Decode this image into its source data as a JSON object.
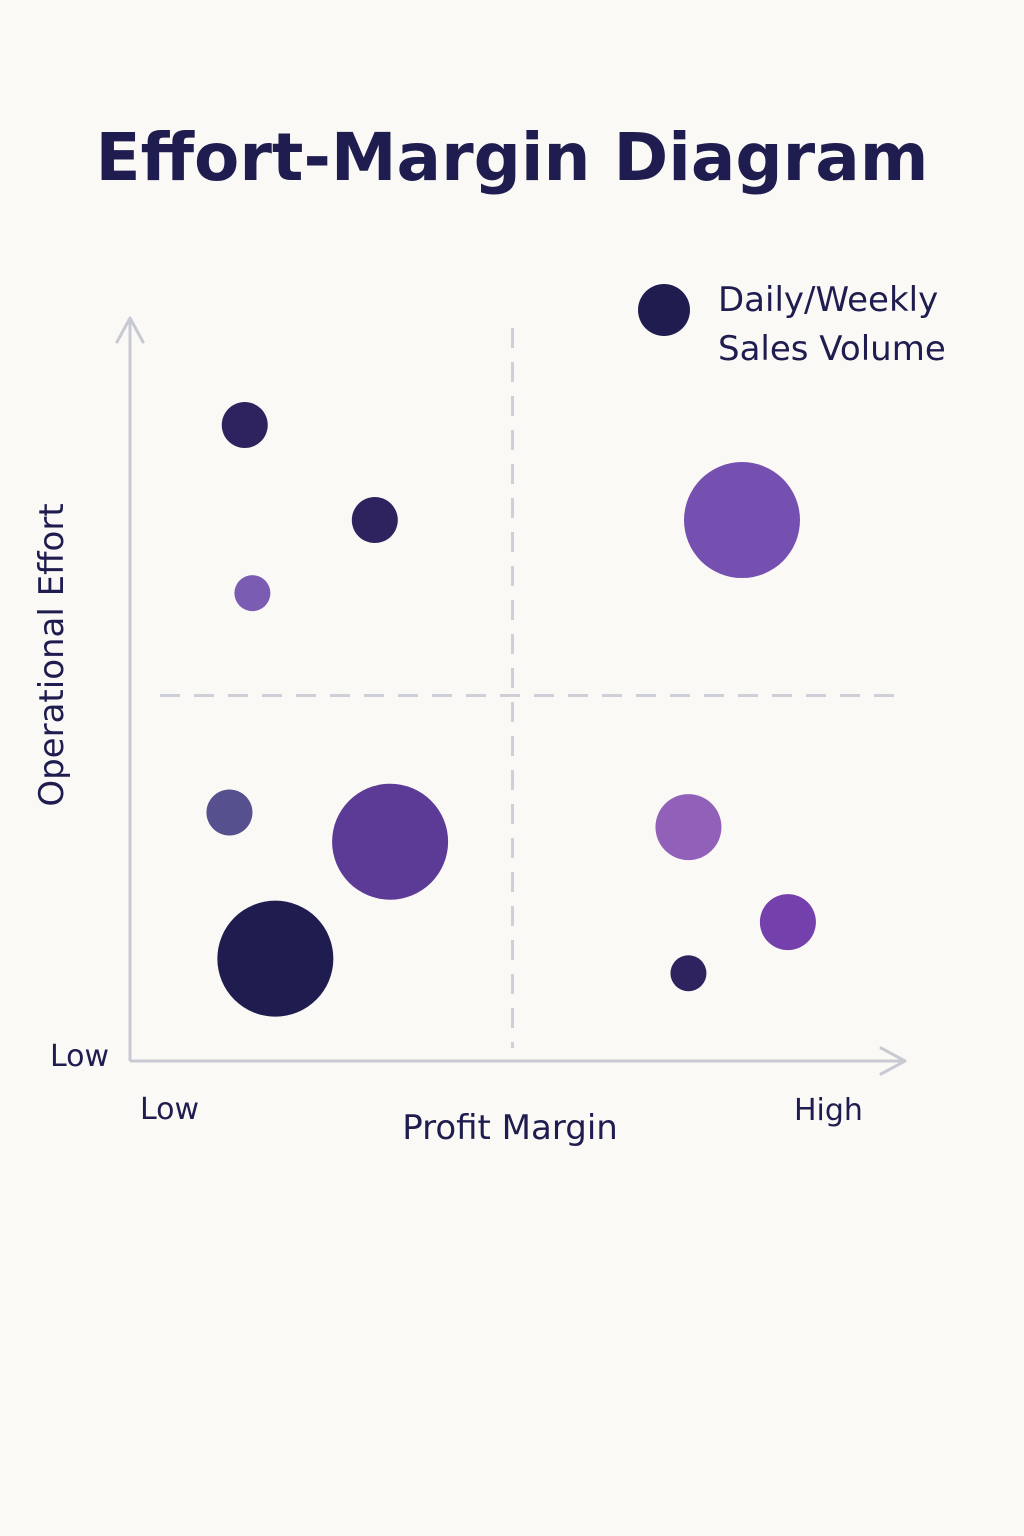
{
  "chart_data": {
    "type": "scatter",
    "title": "Effort-Margin Diagram",
    "xlabel": "Profit Margin",
    "ylabel": "Operational Effort",
    "x_ticks": {
      "low": "Low",
      "high": "High"
    },
    "y_ticks": {
      "low": "Low"
    },
    "xlim": [
      0,
      10
    ],
    "ylim": [
      0,
      10
    ],
    "quadrant_divider": {
      "x": 5,
      "y": 5
    },
    "grid": false,
    "legend": {
      "placement": "top-right",
      "label": "Daily/Weekly Sales Volume",
      "lines": [
        "Daily/Weekly",
        "Sales Volume"
      ],
      "color": "#1f1d4f"
    },
    "points": [
      {
        "x": 1.5,
        "y": 8.7,
        "size": 3,
        "color": "#2f235f"
      },
      {
        "x": 3.2,
        "y": 7.4,
        "size": 3,
        "color": "#2f235f"
      },
      {
        "x": 1.6,
        "y": 6.4,
        "size": 2,
        "color": "#7b5cb3"
      },
      {
        "x": 8.0,
        "y": 7.4,
        "size": 10,
        "color": "#7550b0"
      },
      {
        "x": 1.3,
        "y": 3.4,
        "size": 3,
        "color": "#56508f"
      },
      {
        "x": 3.4,
        "y": 3.0,
        "size": 10,
        "color": "#5b3b95"
      },
      {
        "x": 1.9,
        "y": 1.4,
        "size": 10,
        "color": "#1f1d4f"
      },
      {
        "x": 7.3,
        "y": 3.2,
        "size": 5,
        "color": "#9160b8"
      },
      {
        "x": 8.6,
        "y": 1.9,
        "size": 4,
        "color": "#7440ac"
      },
      {
        "x": 7.3,
        "y": 1.2,
        "size": 2,
        "color": "#2f235f"
      }
    ]
  }
}
